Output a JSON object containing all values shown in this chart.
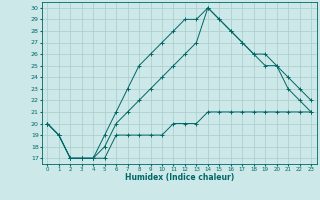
{
  "title": "",
  "xlabel": "Humidex (Indice chaleur)",
  "ylabel": "",
  "bg_color": "#cce8e8",
  "grid_color": "#aacccc",
  "line_color": "#006666",
  "xlim": [
    -0.5,
    23.5
  ],
  "ylim": [
    16.5,
    30.5
  ],
  "xticks": [
    0,
    1,
    2,
    3,
    4,
    5,
    6,
    7,
    8,
    9,
    10,
    11,
    12,
    13,
    14,
    15,
    16,
    17,
    18,
    19,
    20,
    21,
    22,
    23
  ],
  "yticks": [
    17,
    18,
    19,
    20,
    21,
    22,
    23,
    24,
    25,
    26,
    27,
    28,
    29,
    30
  ],
  "line1_x": [
    0,
    1,
    2,
    3,
    4,
    5,
    6,
    7,
    8,
    9,
    10,
    11,
    12,
    13,
    14,
    15,
    16,
    17,
    18,
    19,
    20,
    21,
    22,
    23
  ],
  "line1_y": [
    20,
    19,
    17,
    17,
    17,
    17,
    19,
    19,
    19,
    19,
    19,
    20,
    20,
    20,
    21,
    21,
    21,
    21,
    21,
    21,
    21,
    21,
    21,
    21
  ],
  "line2_x": [
    0,
    1,
    2,
    3,
    4,
    5,
    6,
    7,
    8,
    9,
    10,
    11,
    12,
    13,
    14,
    15,
    16,
    17,
    18,
    19,
    20,
    21,
    22,
    23
  ],
  "line2_y": [
    20,
    19,
    17,
    17,
    17,
    19,
    21,
    23,
    25,
    26,
    27,
    28,
    29,
    29,
    30,
    29,
    28,
    27,
    26,
    25,
    25,
    23,
    22,
    21
  ],
  "line3_x": [
    0,
    1,
    2,
    3,
    4,
    5,
    6,
    7,
    8,
    9,
    10,
    11,
    12,
    13,
    14,
    15,
    16,
    17,
    18,
    19,
    20,
    21,
    22,
    23
  ],
  "line3_y": [
    20,
    19,
    17,
    17,
    17,
    18,
    20,
    21,
    22,
    23,
    24,
    25,
    26,
    27,
    30,
    29,
    28,
    27,
    26,
    26,
    25,
    24,
    23,
    22
  ]
}
